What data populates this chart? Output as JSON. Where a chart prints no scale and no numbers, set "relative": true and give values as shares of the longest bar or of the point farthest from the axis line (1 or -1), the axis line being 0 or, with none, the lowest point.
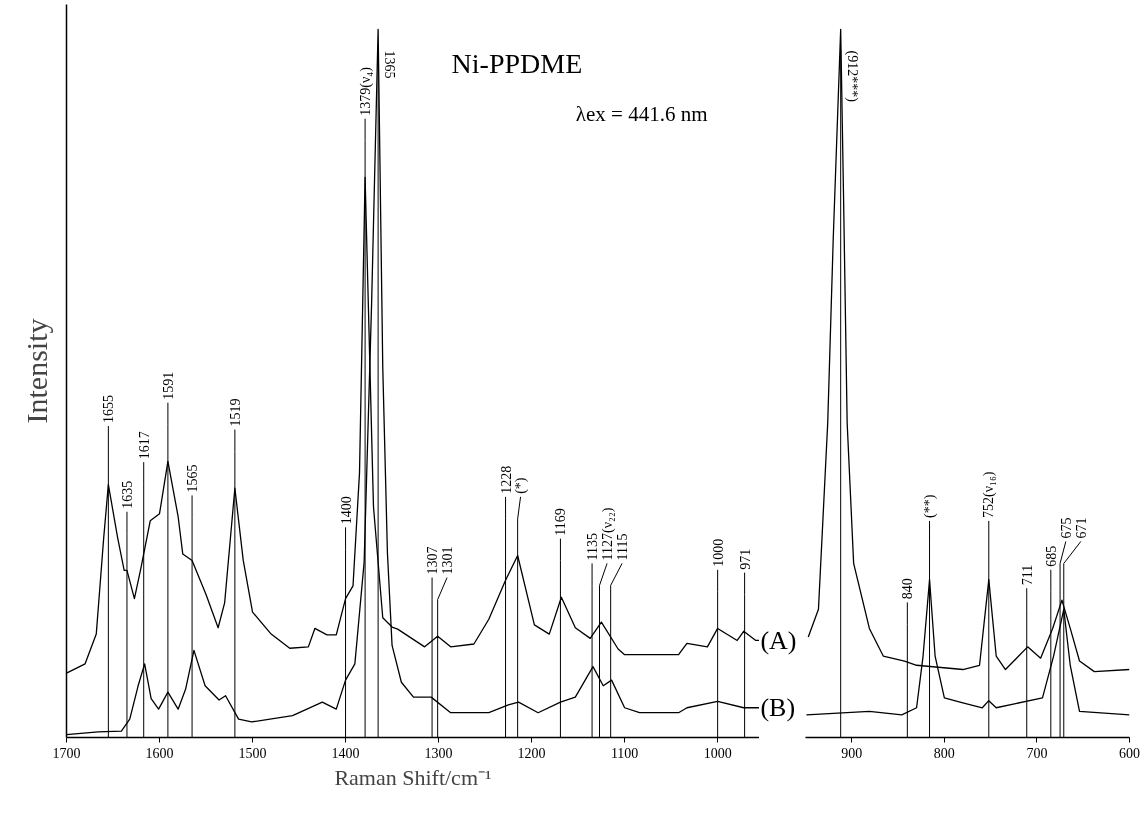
{
  "chart_data": [
    {
      "type": "line",
      "relative": true,
      "title": "Ni-PPDME",
      "subtitle": "λex = 441.6 nm",
      "xlabel": "Raman Shift/cm⁻¹",
      "ylabel": "Intensity",
      "xlim": [
        1700,
        955
      ],
      "xticks": [
        1700,
        1600,
        1500,
        1400,
        1300,
        1200,
        1100,
        1000
      ],
      "series": [
        {
          "name": "(A)",
          "color": "#000000",
          "x": [
            1700,
            1680,
            1668,
            1660,
            1655,
            1645,
            1638,
            1635,
            1627,
            1620,
            1610,
            1600,
            1591,
            1580,
            1575,
            1565,
            1550,
            1537,
            1530,
            1519,
            1510,
            1500,
            1480,
            1460,
            1440,
            1433,
            1420,
            1410,
            1400,
            1392,
            1385,
            1379,
            1370,
            1360,
            1350,
            1344,
            1315,
            1301,
            1287,
            1262,
            1246,
            1228,
            1215,
            1197,
            1181,
            1168,
            1153,
            1137,
            1125,
            1107,
            1100,
            1042,
            1033,
            1011,
            1000,
            979,
            972,
            959,
            955
          ],
          "values": [
            0.091,
            0.104,
            0.146,
            0.282,
            0.357,
            0.282,
            0.236,
            0.236,
            0.196,
            0.239,
            0.306,
            0.316,
            0.39,
            0.312,
            0.259,
            0.25,
            0.202,
            0.155,
            0.19,
            0.352,
            0.25,
            0.177,
            0.146,
            0.126,
            0.128,
            0.154,
            0.145,
            0.145,
            0.196,
            0.214,
            0.374,
            0.791,
            0.326,
            0.169,
            0.156,
            0.153,
            0.128,
            0.143,
            0.128,
            0.132,
            0.167,
            0.222,
            0.257,
            0.159,
            0.146,
            0.198,
            0.155,
            0.14,
            0.163,
            0.125,
            0.117,
            0.117,
            0.133,
            0.128,
            0.154,
            0.137,
            0.15,
            0.137,
            0.137
          ]
        },
        {
          "name": "(B)",
          "color": "#000000",
          "x": [
            1700,
            1666,
            1641,
            1632,
            1623,
            1616,
            1609,
            1601,
            1591,
            1580,
            1572,
            1563,
            1551,
            1536,
            1529,
            1515,
            1501,
            1457,
            1425,
            1410,
            1400,
            1390,
            1380,
            1372,
            1365,
            1360,
            1355,
            1350,
            1340,
            1327,
            1308,
            1287,
            1246,
            1225,
            1214,
            1193,
            1169,
            1153,
            1134,
            1123,
            1114,
            1100,
            1084,
            1042,
            1033,
            1000,
            972,
            957,
            955
          ],
          "values": [
            0.004,
            0.008,
            0.009,
            0.026,
            0.073,
            0.104,
            0.055,
            0.04,
            0.064,
            0.04,
            0.068,
            0.123,
            0.073,
            0.053,
            0.059,
            0.026,
            0.022,
            0.031,
            0.05,
            0.04,
            0.081,
            0.104,
            0.248,
            0.613,
            1.0,
            0.522,
            0.261,
            0.13,
            0.078,
            0.057,
            0.057,
            0.035,
            0.035,
            0.046,
            0.05,
            0.035,
            0.05,
            0.057,
            0.1,
            0.073,
            0.081,
            0.042,
            0.035,
            0.035,
            0.042,
            0.051,
            0.042,
            0.042,
            0.042
          ]
        }
      ],
      "ref_lines": [
        {
          "axis": "x",
          "value": 1655,
          "label": "1655"
        },
        {
          "axis": "x",
          "value": 1635,
          "label": "1635"
        },
        {
          "axis": "x",
          "value": 1617,
          "label": "1617"
        },
        {
          "axis": "x",
          "value": 1591,
          "label": "1591"
        },
        {
          "axis": "x",
          "value": 1565,
          "label": "1565"
        },
        {
          "axis": "x",
          "value": 1519,
          "label": "1519"
        },
        {
          "axis": "x",
          "value": 1400,
          "label": "1400"
        },
        {
          "axis": "x",
          "value": 1379,
          "label": "1379(ν₄)"
        },
        {
          "axis": "x",
          "value": 1365,
          "label": "1365"
        },
        {
          "axis": "x",
          "value": 1307,
          "label": "1307"
        },
        {
          "axis": "x",
          "value": 1301,
          "label": "1301"
        },
        {
          "axis": "x",
          "value": 1228,
          "label": "1228"
        },
        {
          "axis": "x",
          "value": 1215,
          "label": "(*)"
        },
        {
          "axis": "x",
          "value": 1169,
          "label": "1169"
        },
        {
          "axis": "x",
          "value": 1135,
          "label": "1135"
        },
        {
          "axis": "x",
          "value": 1127,
          "label": "1127(ν₂₂)"
        },
        {
          "axis": "x",
          "value": 1115,
          "label": "1115"
        },
        {
          "axis": "x",
          "value": 1000,
          "label": "1000"
        },
        {
          "axis": "x",
          "value": 971,
          "label": "971"
        }
      ]
    },
    {
      "type": "line",
      "relative": true,
      "xlim": [
        950,
        600
      ],
      "xticks": [
        900,
        800,
        700,
        600
      ],
      "series": [
        {
          "color": "#000000",
          "x": [
            947,
            936,
            926,
            920,
            912,
            909,
            905,
            898,
            881,
            866,
            843,
            830,
            780,
            762,
            752,
            744,
            734,
            710,
            696,
            683,
            673,
            664,
            654,
            638,
            600
          ],
          "values": [
            0.142,
            0.181,
            0.444,
            0.706,
            1.0,
            0.772,
            0.444,
            0.246,
            0.154,
            0.115,
            0.108,
            0.102,
            0.096,
            0.102,
            0.223,
            0.115,
            0.096,
            0.128,
            0.112,
            0.154,
            0.194,
            0.154,
            0.108,
            0.093,
            0.096
          ]
        },
        {
          "color": "#000000",
          "x": [
            949,
            881,
            846,
            830,
            823,
            816,
            810,
            800,
            780,
            759,
            752,
            744,
            694,
            682,
            671,
            664,
            654,
            600
          ],
          "values": [
            0.032,
            0.037,
            0.032,
            0.042,
            0.115,
            0.223,
            0.115,
            0.056,
            0.049,
            0.042,
            0.052,
            0.042,
            0.056,
            0.115,
            0.181,
            0.102,
            0.037,
            0.032
          ]
        }
      ],
      "ref_lines": [
        {
          "axis": "x",
          "value": 912,
          "label": "(912***)"
        },
        {
          "axis": "x",
          "value": 840,
          "label": "840"
        },
        {
          "axis": "x",
          "value": 816,
          "label": "(**)"
        },
        {
          "axis": "x",
          "value": 752,
          "label": "752(ν₁₆)"
        },
        {
          "axis": "x",
          "value": 711,
          "label": "711"
        },
        {
          "axis": "x",
          "value": 685,
          "label": "685"
        },
        {
          "axis": "x",
          "value": 675,
          "label": "675"
        },
        {
          "axis": "x",
          "value": 671,
          "label": "671"
        }
      ]
    }
  ]
}
